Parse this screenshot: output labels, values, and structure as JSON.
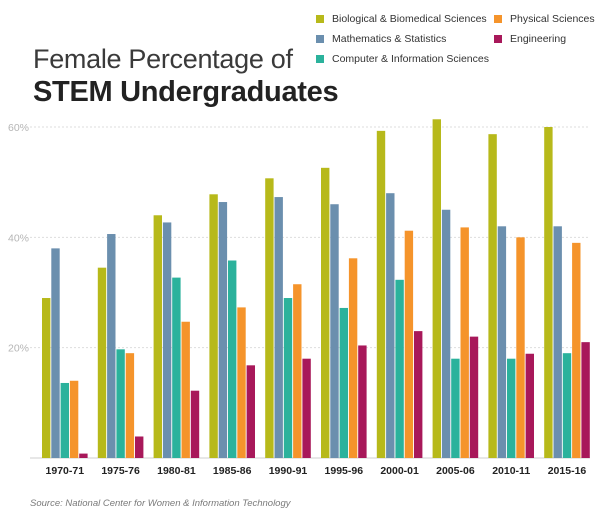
{
  "title_line1": "Female Percentage of",
  "title_line2": "STEM Undergraduates",
  "source": "Source: National Center for Women & Information Technology",
  "chart_data": {
    "type": "bar",
    "title": "Female Percentage of STEM Undergraduates",
    "xlabel": "",
    "ylabel": "",
    "ylim": [
      0,
      60
    ],
    "yticks": [
      20,
      40,
      60
    ],
    "ytick_labels": [
      "20%",
      "40%",
      "60%"
    ],
    "grid": true,
    "legend": "top-right",
    "categories": [
      "1970-71",
      "1975-76",
      "1980-81",
      "1985-86",
      "1990-91",
      "1995-96",
      "2000-01",
      "2005-06",
      "2010-11",
      "2015-16"
    ],
    "series": [
      {
        "name": "Biological & Biomedical Sciences",
        "color": "#b7b91a",
        "values": [
          29,
          34.5,
          44,
          47.8,
          50.7,
          52.6,
          59.3,
          61.4,
          58.7,
          60
        ]
      },
      {
        "name": "Mathematics & Statistics",
        "color": "#6b8fae",
        "values": [
          38,
          40.6,
          42.7,
          46.4,
          47.3,
          46,
          48,
          45,
          42,
          42
        ]
      },
      {
        "name": "Computer & Information Sciences",
        "color": "#2bb29c",
        "values": [
          13.6,
          19.7,
          32.7,
          35.8,
          29,
          27.2,
          32.3,
          18,
          18,
          19
        ]
      },
      {
        "name": "Physical Sciences",
        "color": "#f5942b",
        "values": [
          14,
          19,
          24.7,
          27.3,
          31.5,
          36.2,
          41.2,
          41.8,
          40,
          39
        ]
      },
      {
        "name": "Engineering",
        "color": "#a8185a",
        "values": [
          0.8,
          3.9,
          12.2,
          16.8,
          18,
          20.4,
          23,
          22,
          18.9,
          21
        ]
      }
    ]
  }
}
